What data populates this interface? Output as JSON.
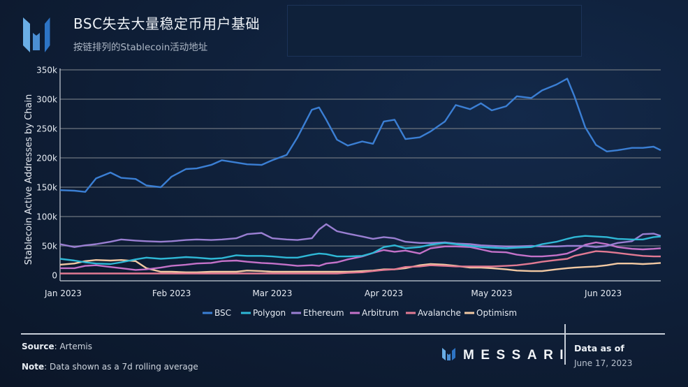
{
  "header": {
    "title": "BSC失去大量稳定币用户基础",
    "subtitle": "按链排列的Stablecoin活动地址"
  },
  "footer": {
    "source_label": "Source",
    "source_value": ": Artemis",
    "note_label": "Note",
    "note_value": ": Data shown as a 7d rolling average",
    "brand": "MESSARI",
    "data_as_of_label": "Data as of",
    "data_as_of_date": "June 17, 2023"
  },
  "chart_data": {
    "type": "line",
    "title": "BSC失去大量稳定币用户基础",
    "subtitle": "按链排列的Stablecoin活动地址",
    "xlabel": "",
    "ylabel": "Stablecoin Active Addresses by Chain",
    "ylim": [
      0,
      350000
    ],
    "yticks": [
      0,
      50000,
      100000,
      150000,
      200000,
      250000,
      300000,
      350000
    ],
    "ytick_labels": [
      "0",
      "50k",
      "100k",
      "150k",
      "200k",
      "250k",
      "300k",
      "350k"
    ],
    "xlim_days": [
      0,
      167
    ],
    "xticks_days": [
      0,
      31,
      59,
      90,
      120,
      151
    ],
    "xtick_labels": [
      "Jan 2023",
      "Feb 2023",
      "Mar 2023",
      "Apr 2023",
      "May 2023",
      "Jun 2023"
    ],
    "grid": true,
    "legend_position": "bottom-center",
    "x_days": [
      0,
      4,
      7,
      10,
      14,
      17,
      21,
      24,
      28,
      31,
      35,
      38,
      42,
      45,
      49,
      52,
      56,
      59,
      63,
      66,
      70,
      72,
      74,
      77,
      80,
      84,
      87,
      90,
      93,
      96,
      100,
      103,
      107,
      110,
      114,
      117,
      120,
      124,
      127,
      131,
      134,
      138,
      141,
      143,
      146,
      149,
      152,
      155,
      159,
      162,
      165,
      167
    ],
    "series": [
      {
        "name": "BSC",
        "color": "#3b7fd4",
        "values": [
          145000,
          144000,
          142000,
          165000,
          175000,
          166000,
          164000,
          153000,
          150000,
          168000,
          181000,
          182000,
          188000,
          196000,
          192000,
          189000,
          188000,
          196000,
          205000,
          235000,
          282000,
          286000,
          265000,
          231000,
          221000,
          228000,
          224000,
          262000,
          265000,
          232000,
          235000,
          245000,
          262000,
          290000,
          283000,
          293000,
          281000,
          288000,
          305000,
          302000,
          315000,
          325000,
          335000,
          305000,
          252000,
          222000,
          211000,
          213000,
          217000,
          217000,
          219000,
          213000
        ]
      },
      {
        "name": "Polygon",
        "color": "#2fb8d6",
        "values": [
          28000,
          25000,
          22000,
          20000,
          19000,
          22000,
          27000,
          30000,
          28000,
          29000,
          31000,
          30000,
          28000,
          29000,
          34000,
          33000,
          33000,
          32000,
          30000,
          30000,
          35000,
          37000,
          36000,
          32000,
          32000,
          33000,
          38000,
          48000,
          51000,
          46000,
          48000,
          52000,
          55000,
          53000,
          50000,
          48000,
          47000,
          46000,
          47000,
          48000,
          53000,
          57000,
          62000,
          65000,
          67000,
          66000,
          65000,
          62000,
          61000,
          61000,
          65000,
          66000
        ]
      },
      {
        "name": "Ethereum",
        "color": "#9a7fd2",
        "values": [
          53000,
          48000,
          51000,
          53000,
          57000,
          61000,
          59000,
          58000,
          57000,
          58000,
          60000,
          61000,
          60000,
          61000,
          63000,
          70000,
          72000,
          63000,
          61000,
          60000,
          63000,
          78000,
          87000,
          75000,
          71000,
          66000,
          62000,
          65000,
          63000,
          57000,
          55000,
          55000,
          56000,
          54000,
          53000,
          51000,
          50000,
          49000,
          49000,
          50000,
          49000,
          49000,
          50000,
          50000,
          50000,
          48000,
          50000,
          55000,
          58000,
          70000,
          71000,
          67000
        ]
      },
      {
        "name": "Arbitrum",
        "color": "#c472c9",
        "values": [
          12000,
          12000,
          16000,
          17000,
          14000,
          12000,
          9000,
          10000,
          13000,
          16000,
          18000,
          20000,
          21000,
          24000,
          25000,
          23000,
          21000,
          20000,
          18000,
          16000,
          17000,
          16000,
          20000,
          22000,
          27000,
          32000,
          38000,
          43000,
          40000,
          42000,
          37000,
          46000,
          49000,
          49000,
          48000,
          44000,
          40000,
          39000,
          35000,
          32000,
          32000,
          34000,
          37000,
          42000,
          52000,
          56000,
          53000,
          48000,
          45000,
          44000,
          45000,
          46000
        ]
      },
      {
        "name": "Avalanche",
        "color": "#e27a93",
        "values": [
          3000,
          3000,
          3000,
          3000,
          3000,
          3000,
          3000,
          3000,
          3000,
          3000,
          3000,
          3000,
          3000,
          3000,
          3000,
          3000,
          3000,
          3000,
          3000,
          3000,
          3000,
          3000,
          3000,
          3000,
          4000,
          5000,
          7000,
          9000,
          10000,
          14000,
          15000,
          17000,
          16000,
          15000,
          15000,
          15000,
          15000,
          16000,
          17000,
          20000,
          23000,
          26000,
          28000,
          33000,
          37000,
          41000,
          40000,
          38000,
          35000,
          33000,
          32000,
          32000
        ]
      },
      {
        "name": "Optimism",
        "color": "#f2c9a3",
        "values": [
          18000,
          20000,
          24000,
          26000,
          25000,
          26000,
          24000,
          12000,
          6000,
          6000,
          5000,
          5000,
          6000,
          6000,
          6000,
          8000,
          7000,
          6000,
          6000,
          6000,
          6000,
          6000,
          6000,
          6000,
          6000,
          7000,
          8000,
          10000,
          10000,
          12000,
          17000,
          19000,
          18000,
          16000,
          13000,
          13000,
          12000,
          10000,
          8000,
          7000,
          7000,
          10000,
          12000,
          13000,
          14000,
          15000,
          17000,
          20000,
          20000,
          19000,
          20000,
          21000
        ]
      }
    ]
  }
}
